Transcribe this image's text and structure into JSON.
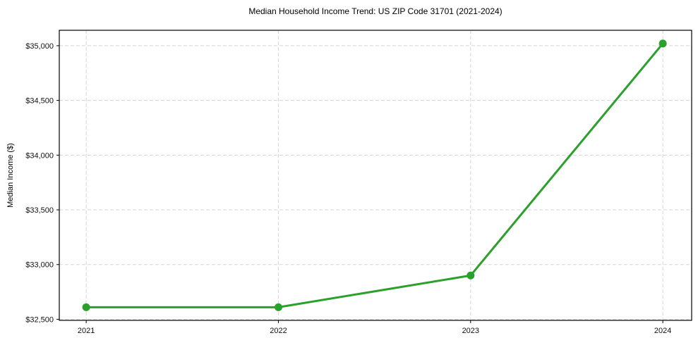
{
  "figure": {
    "title": "Median Household Income Trend: US ZIP Code 31701 (2021-2024)",
    "ylabel": "Median Income ($)"
  },
  "chart_data": {
    "type": "line",
    "title": "Median Household Income Trend: US ZIP Code 31701 (2021-2024)",
    "xlabel": "",
    "ylabel": "Median Income ($)",
    "x": [
      2021,
      2022,
      2023,
      2024
    ],
    "values": [
      32610,
      32610,
      32900,
      35020
    ],
    "series_name": "Median Household Income",
    "xticks": [
      2021,
      2022,
      2023,
      2024
    ],
    "xtick_labels": [
      "2021",
      "2022",
      "2023",
      "2024"
    ],
    "yticks": [
      32500,
      33000,
      33500,
      34000,
      34500,
      35000
    ],
    "ytick_labels": [
      "$32,500",
      "$33,000",
      "$33,500",
      "$34,000",
      "$34,500",
      "$35,000"
    ],
    "xlim": [
      2020.86,
      2024.15
    ],
    "ylim": [
      32490,
      35141
    ],
    "grid": true,
    "grid_style": "dashed",
    "line_color": "#2ca02c",
    "marker": "circle",
    "legend": "none"
  }
}
